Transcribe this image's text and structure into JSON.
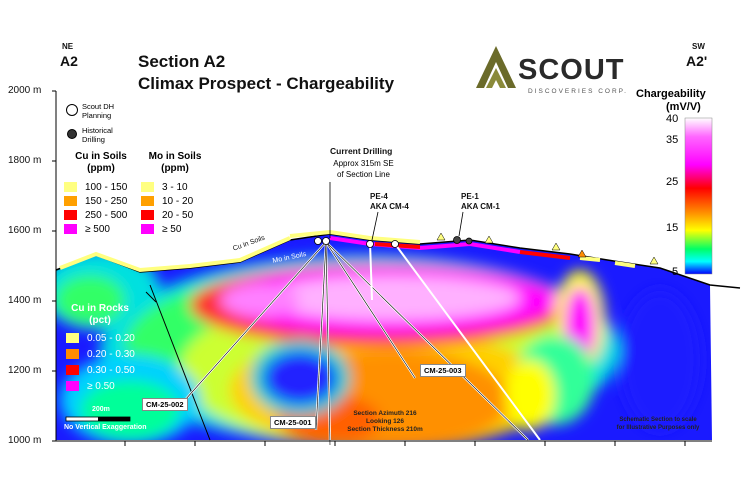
{
  "header": {
    "left_dir": "NE",
    "left_section": "A2",
    "right_dir": "SW",
    "right_section": "A2'",
    "title_line1": "Section A2",
    "title_line2": "Climax Prospect - Chargeability"
  },
  "logo": {
    "name": "SCOUT",
    "tagline": "DISCOVERIES CORP."
  },
  "y_axis": {
    "labels": [
      "2000 m",
      "1800 m",
      "1600 m",
      "1400 m",
      "1200 m",
      "1000 m"
    ]
  },
  "dh_legend": {
    "planning": "Scout DH Planning",
    "historical": "Historical Drilling"
  },
  "cu_soils": {
    "title": "Cu in Soils",
    "unit": "(ppm)",
    "items": [
      {
        "label": "100 - 150",
        "color": "#ffff80"
      },
      {
        "label": "150 - 250",
        "color": "#ffa000"
      },
      {
        "label": "250 - 500",
        "color": "#ff0000"
      },
      {
        "label": "≥ 500",
        "color": "#ff00ff"
      }
    ]
  },
  "mo_soils": {
    "title": "Mo in Soils",
    "unit": "(ppm)",
    "items": [
      {
        "label": "3 - 10",
        "color": "#ffff80"
      },
      {
        "label": "10 - 20",
        "color": "#ffa000"
      },
      {
        "label": "20 - 50",
        "color": "#ff0000"
      },
      {
        "label": "≥ 50",
        "color": "#ff00ff"
      }
    ]
  },
  "cu_rocks": {
    "title": "Cu in Rocks",
    "unit": "(pct)",
    "items": [
      {
        "label": "0.05 - 0.20",
        "color": "#ffff80"
      },
      {
        "label": "0.20 - 0.30",
        "color": "#ff8c00"
      },
      {
        "label": "0.30 - 0.50",
        "color": "#ff0000"
      },
      {
        "label": "≥ 0.50",
        "color": "#ff00ff"
      }
    ]
  },
  "scale": {
    "bar_label": "200m",
    "note": "No Vertical Exaggeration"
  },
  "colorbar": {
    "title": "Chargeability",
    "unit": "(mV/V)",
    "ticks": [
      "40",
      "35",
      "25",
      "15",
      "5"
    ]
  },
  "annotations": {
    "current_drilling": "Current Drilling",
    "approx_line1": "Approx 315m SE",
    "approx_line2": "of Section Line",
    "pe4_line1": "PE-4",
    "pe4_line2": "AKA CM-4",
    "pe1_line1": "PE-1",
    "pe1_line2": "AKA CM-1",
    "cu_in_soils": "Cu in Soils",
    "mo_in_soils": "Mo in Soils",
    "cm25_001": "CM-25-001",
    "cm25_002": "CM-25-002",
    "cm25_003": "CM-25-003",
    "section_line1": "Section Azimuth 216",
    "section_line2": "Looking 126",
    "section_line3": "Section Thickness 210m",
    "schematic_line1": "Schematic Section to scale",
    "schematic_line2": "for Illustrative Purposes only"
  }
}
